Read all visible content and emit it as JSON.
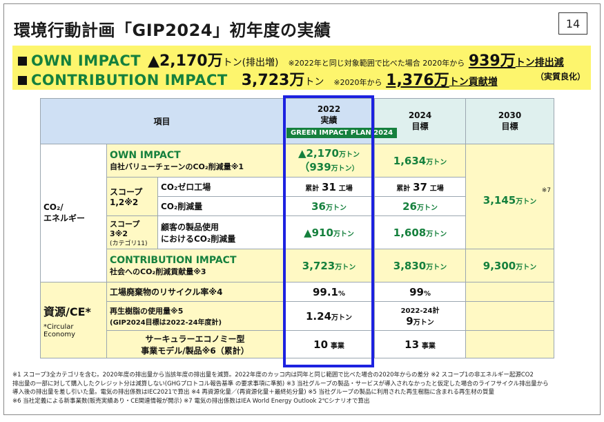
{
  "header": {
    "title": "環境行動計画「GIP2024」初年度の実績",
    "page_number": "14"
  },
  "banner": {
    "own": {
      "label": "OWN IMPACT",
      "value": "▲2,170万",
      "unit": "トン(排出増)",
      "note": "※2022年と同じ対象範囲で比べた場合 2020年から",
      "big_value": "939万",
      "big_unit": "トン排出減"
    },
    "contribution": {
      "label": "CONTRIBUTION IMPACT",
      "value": "3,723万",
      "unit": "トン",
      "note": "※2020年から",
      "big_value": "1,376万",
      "big_unit": "トン貢献増"
    },
    "note_right": "（実質良化）"
  },
  "table": {
    "headers": {
      "item": "項目",
      "y2022": "2022",
      "y2022_sub": "実績",
      "gip_badge": "GREEN IMPACT PLAN 2024",
      "y2024": "2024",
      "y2024_sub": "目標",
      "y2030": "2030",
      "y2030_sub": "目標"
    },
    "co2": {
      "category": "CO₂/\nエネルギー",
      "own": {
        "title": "OWN IMPACT",
        "desc": "自社バリューチェーンのCO₂削減量※1",
        "v2022": "▲2,170",
        "v2022_unit": "万トン",
        "v2022_sub": "（939",
        "v2022_sub_unit": "万トン）",
        "v2024": "1,634",
        "v2024_unit": "万トン"
      },
      "scope12": {
        "label": "スコープ\n1,2※2",
        "zero_factory": {
          "label": "CO₂ゼロ工場",
          "v2022_prefix": "累計",
          "v2022": "31",
          "v2022_unit": "工場",
          "v2024_prefix": "累計",
          "v2024": "37",
          "v2024_unit": "工場"
        },
        "reduction": {
          "label": "CO₂削減量",
          "v2022": "36",
          "v2022_unit": "万トン",
          "v2024": "26",
          "v2024_unit": "万トン"
        }
      },
      "scope3": {
        "label": "スコープ\n3※2",
        "sub": "(カテゴリ11)",
        "desc": "顧客の製品使用\nにおけるCO₂削減量",
        "v2022": "▲910",
        "v2022_unit": "万トン",
        "v2024": "1,608",
        "v2024_unit": "万トン"
      },
      "own_2030": {
        "value": "3,145",
        "unit": "万トン",
        "note": "※7"
      },
      "contribution": {
        "title": "CONTRIBUTION IMPACT",
        "desc": "社会へのCO₂削減貢献量※3",
        "v2022": "3,723",
        "v2022_unit": "万トン",
        "v2024": "3,830",
        "v2024_unit": "万トン",
        "v2030": "9,300",
        "v2030_unit": "万トン"
      }
    },
    "resource": {
      "category": "資源/CE*",
      "category_note": "*Circular\nEconomy",
      "recycle": {
        "label": "工場廃棄物のリサイクル率※4",
        "v2022": "99.1",
        "v2022_unit": "%",
        "v2024": "99",
        "v2024_unit": "%"
      },
      "resin": {
        "label": "再生樹脂の使用量※5",
        "sub": "(GIP2024目標は2022‐24年度計)",
        "v2022": "1.24",
        "v2022_unit": "万トン",
        "v2024_top": "2022-24計",
        "v2024": "9",
        "v2024_unit": "万トン"
      },
      "circular": {
        "label": "サーキュラーエコノミー型\n事業モデル/製品※6（累計）",
        "v2022": "10",
        "v2022_unit": "事業",
        "v2024": "13",
        "v2024_unit": "事業"
      }
    }
  },
  "footnotes": [
    "※1 スコープ3全カテゴリを含む。2020年度の排出量から当該年度の排出量を減算。2022年度のカッコ内は同年と同じ範囲で比べた場合の2020年からの差分 ※2 スコープ1の非エネルギー起源CO2",
    "排出量の一部に対して購入したクレジット分は減算しない(GHGプロトコル報告基準 の要求事項に準拠) ※3 当社グループの製品・サービスが導入されなかったと仮定した場合のライフサイクル排出量から",
    "導入後の排出量を差し引いた量。電気の排出係数はIEC2021で算出 ※4 再資源化量／(再資源化量＋最終処分量) ※5 当社グループの製品に利用された再生樹脂に含まれる再生材の質量",
    "※6 当社定義による新事業数(販売実績あり・CE関連情報が開示) ※7 電気の排出係数はIEA World Energy Outlook 2℃シナリオで算出"
  ]
}
